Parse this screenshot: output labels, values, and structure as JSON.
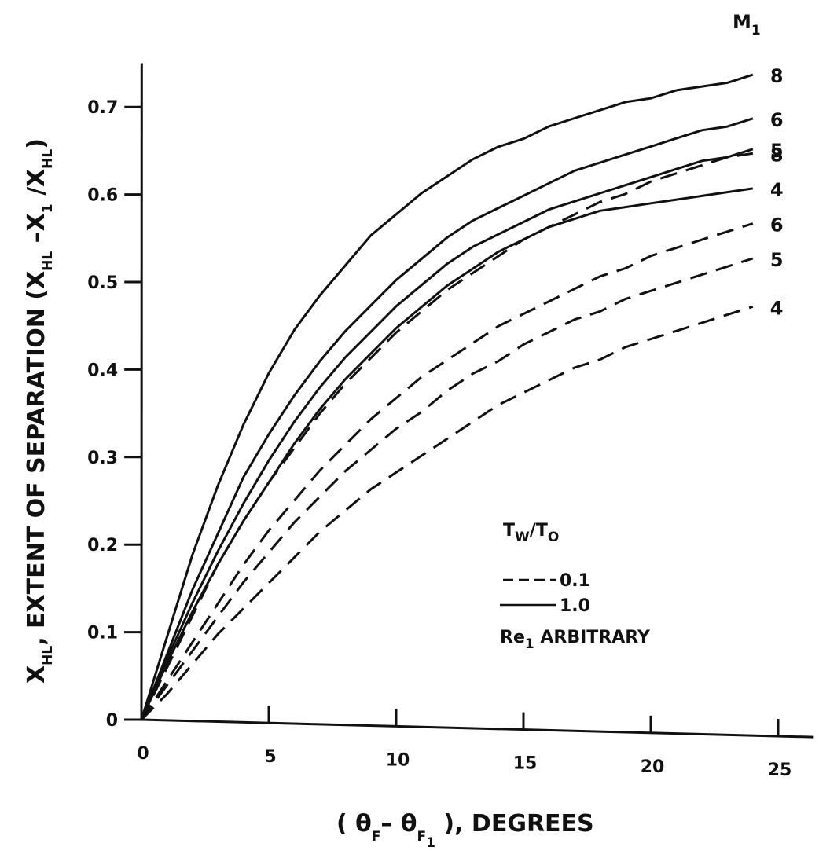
{
  "chart_data": {
    "type": "line",
    "xlabel": {
      "pre": "( θ",
      "sub1": "F",
      "mid": "– θ",
      "sub2": "F",
      "sub3": "1",
      "post": " ), DEGREES"
    },
    "ylabel": {
      "x": "X",
      "x_sub": "HL",
      "mid": ", EXTENT OF SEPARATION (X",
      "sub1": "HL",
      "dash": " –X",
      "sub2": "1",
      "slash": " /X",
      "sub3": "HL",
      "close": ")"
    },
    "xlim": [
      0,
      25
    ],
    "ylim": [
      0,
      0.7
    ],
    "x_ticks": [
      "0",
      "5",
      "10",
      "15",
      "20",
      "25"
    ],
    "y_ticks": [
      "0",
      "0.1",
      "0.2",
      "0.3",
      "0.4",
      "0.5",
      "0.6",
      "0.7"
    ],
    "mach_header": {
      "main": "M",
      "sub": "1"
    },
    "x": [
      0,
      1,
      2,
      3,
      4,
      5,
      6,
      7,
      8,
      9,
      10,
      11,
      12,
      13,
      14,
      15,
      16,
      17,
      18,
      19,
      20,
      21,
      22,
      23,
      24
    ],
    "series": [
      {
        "name": "8",
        "group": "1.0",
        "style": "solid",
        "values": [
          0,
          0.095,
          0.19,
          0.27,
          0.34,
          0.4,
          0.45,
          0.49,
          0.525,
          0.56,
          0.585,
          0.61,
          0.63,
          0.65,
          0.665,
          0.675,
          0.69,
          0.7,
          0.71,
          0.72,
          0.725,
          0.735,
          0.74,
          0.745,
          0.755
        ]
      },
      {
        "name": "6",
        "group": "1.0",
        "style": "solid",
        "values": [
          0,
          0.075,
          0.15,
          0.215,
          0.28,
          0.33,
          0.375,
          0.415,
          0.45,
          0.48,
          0.51,
          0.535,
          0.56,
          0.58,
          0.595,
          0.61,
          0.625,
          0.64,
          0.65,
          0.66,
          0.67,
          0.68,
          0.69,
          0.695,
          0.705
        ]
      },
      {
        "name": "5",
        "group": "1.0",
        "style": "solid",
        "values": [
          0,
          0.07,
          0.135,
          0.195,
          0.25,
          0.3,
          0.345,
          0.385,
          0.42,
          0.45,
          0.48,
          0.505,
          0.53,
          0.55,
          0.565,
          0.58,
          0.595,
          0.605,
          0.615,
          0.625,
          0.635,
          0.645,
          0.655,
          0.66,
          0.67
        ]
      },
      {
        "name": "4",
        "group": "1.0",
        "style": "solid",
        "values": [
          0,
          0.065,
          0.125,
          0.18,
          0.23,
          0.275,
          0.32,
          0.36,
          0.395,
          0.425,
          0.455,
          0.48,
          0.505,
          0.525,
          0.545,
          0.56,
          0.575,
          0.585,
          0.595,
          0.6,
          0.605,
          0.61,
          0.615,
          0.62,
          0.625
        ]
      },
      {
        "name": "8",
        "group": "0.1",
        "style": "dashed",
        "values": [
          0,
          0.06,
          0.12,
          0.18,
          0.23,
          0.275,
          0.315,
          0.355,
          0.39,
          0.42,
          0.45,
          0.475,
          0.5,
          0.52,
          0.54,
          0.56,
          0.575,
          0.59,
          0.605,
          0.615,
          0.63,
          0.64,
          0.65,
          0.66,
          0.665
        ]
      },
      {
        "name": "6",
        "group": "0.1",
        "style": "dashed",
        "values": [
          0,
          0.045,
          0.09,
          0.135,
          0.18,
          0.22,
          0.255,
          0.29,
          0.32,
          0.35,
          0.375,
          0.4,
          0.42,
          0.44,
          0.46,
          0.475,
          0.49,
          0.505,
          0.52,
          0.53,
          0.545,
          0.555,
          0.565,
          0.575,
          0.585
        ]
      },
      {
        "name": "5",
        "group": "0.1",
        "style": "dashed",
        "values": [
          0,
          0.04,
          0.08,
          0.12,
          0.16,
          0.195,
          0.23,
          0.26,
          0.29,
          0.315,
          0.34,
          0.36,
          0.385,
          0.405,
          0.42,
          0.44,
          0.455,
          0.47,
          0.48,
          0.495,
          0.505,
          0.515,
          0.525,
          0.535,
          0.545
        ]
      },
      {
        "name": "4",
        "group": "0.1",
        "style": "dashed",
        "values": [
          0,
          0.03,
          0.065,
          0.1,
          0.13,
          0.16,
          0.19,
          0.22,
          0.245,
          0.27,
          0.29,
          0.31,
          0.33,
          0.35,
          0.37,
          0.385,
          0.4,
          0.415,
          0.425,
          0.44,
          0.45,
          0.46,
          0.47,
          0.48,
          0.49
        ]
      }
    ],
    "legend": {
      "title_main": "T",
      "title_sub1": "W",
      "title_slash": "/T",
      "title_sub2": "O",
      "entries": [
        {
          "style": "dashed",
          "label": "0.1"
        },
        {
          "style": "solid",
          "label": "1.0"
        }
      ],
      "note_main": "Re",
      "note_sub": "1",
      "note_rest": " ARBITRARY"
    }
  }
}
